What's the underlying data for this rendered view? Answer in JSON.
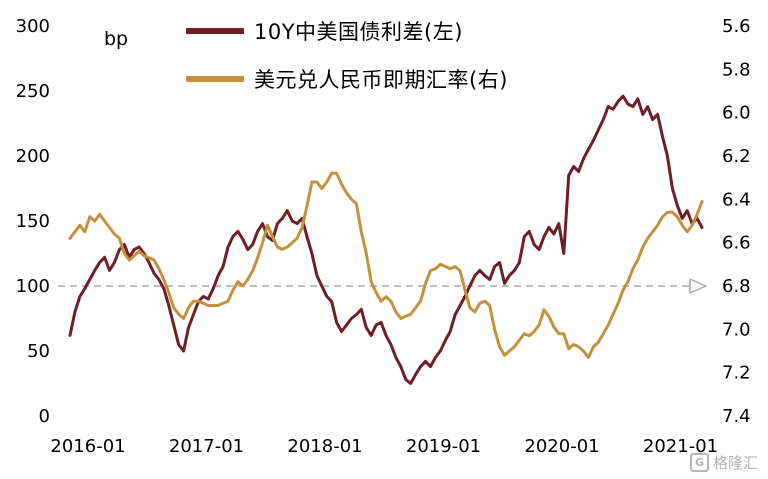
{
  "chart_data": {
    "type": "line",
    "unit_label": "bp",
    "x_tick_labels": [
      "2016-01",
      "2017-01",
      "2018-01",
      "2019-01",
      "2020-01",
      "2021-01"
    ],
    "x_tick_months": [
      0,
      12,
      24,
      36,
      48,
      60
    ],
    "months_max": 64,
    "left_axis": {
      "min": 0,
      "max": 300,
      "ticks": [
        0,
        50,
        100,
        150,
        200,
        250,
        300
      ]
    },
    "right_axis": {
      "min": 5.6,
      "max": 7.4,
      "inverted": true,
      "ticks": [
        5.6,
        5.8,
        6.0,
        6.2,
        6.4,
        6.6,
        6.8,
        7.0,
        7.2,
        7.4
      ]
    },
    "reference_line": {
      "left_value": 100,
      "right_value": 6.8,
      "style": "dashed",
      "color": "#a6a6a6",
      "arrow": true
    },
    "series": [
      {
        "name": "10Y中美国债利差(左)",
        "axis": "left",
        "color": "#6e1e24",
        "values": [
          62,
          80,
          92,
          98,
          105,
          112,
          118,
          122,
          112,
          118,
          128,
          132,
          122,
          128,
          130,
          125,
          118,
          110,
          105,
          98,
          85,
          70,
          55,
          50,
          68,
          78,
          88,
          92,
          90,
          98,
          108,
          115,
          130,
          138,
          142,
          136,
          128,
          132,
          142,
          148,
          138,
          135,
          148,
          152,
          158,
          150,
          148,
          152,
          138,
          125,
          108,
          100,
          92,
          88,
          72,
          65,
          70,
          75,
          78,
          82,
          68,
          62,
          70,
          72,
          62,
          55,
          45,
          38,
          28,
          25,
          32,
          38,
          42,
          38,
          45,
          50,
          58,
          65,
          78,
          85,
          92,
          100,
          108,
          112,
          108,
          105,
          115,
          118,
          102,
          108,
          112,
          118,
          138,
          142,
          132,
          128,
          138,
          145,
          140,
          148,
          125,
          185,
          192,
          188,
          198,
          205,
          212,
          220,
          228,
          238,
          236,
          242,
          246,
          240,
          238,
          244,
          232,
          238,
          228,
          232,
          215,
          200,
          175,
          162,
          152,
          158,
          148,
          152,
          145
        ]
      },
      {
        "name": "美元兑人民币即期汇率(右)",
        "axis": "right",
        "color": "#c3913e",
        "values": [
          6.58,
          6.55,
          6.52,
          6.55,
          6.48,
          6.5,
          6.47,
          6.5,
          6.53,
          6.56,
          6.58,
          6.65,
          6.68,
          6.66,
          6.64,
          6.66,
          6.67,
          6.68,
          6.72,
          6.77,
          6.83,
          6.9,
          6.93,
          6.95,
          6.9,
          6.87,
          6.87,
          6.88,
          6.89,
          6.89,
          6.89,
          6.88,
          6.87,
          6.82,
          6.78,
          6.8,
          6.77,
          6.73,
          6.67,
          6.6,
          6.52,
          6.57,
          6.62,
          6.63,
          6.62,
          6.6,
          6.58,
          6.53,
          6.43,
          6.32,
          6.32,
          6.35,
          6.32,
          6.28,
          6.28,
          6.33,
          6.37,
          6.4,
          6.42,
          6.55,
          6.65,
          6.78,
          6.83,
          6.87,
          6.85,
          6.87,
          6.92,
          6.95,
          6.94,
          6.93,
          6.9,
          6.87,
          6.79,
          6.73,
          6.72,
          6.7,
          6.71,
          6.72,
          6.71,
          6.73,
          6.82,
          6.9,
          6.92,
          6.88,
          6.87,
          6.89,
          7.0,
          7.08,
          7.12,
          7.1,
          7.08,
          7.05,
          7.02,
          7.03,
          7.01,
          6.98,
          6.91,
          6.94,
          6.99,
          7.02,
          7.02,
          7.09,
          7.07,
          7.08,
          7.1,
          7.13,
          7.08,
          7.06,
          7.02,
          6.98,
          6.93,
          6.88,
          6.82,
          6.78,
          6.72,
          6.68,
          6.62,
          6.58,
          6.55,
          6.52,
          6.48,
          6.46,
          6.46,
          6.48,
          6.52,
          6.55,
          6.52,
          6.47,
          6.41
        ]
      }
    ]
  },
  "legend": {
    "series1": "10Y中美国债利差(左)",
    "series2": "美元兑人民币即期汇率(右)"
  },
  "watermark": {
    "logo_letter": "G",
    "text": "格隆汇"
  }
}
